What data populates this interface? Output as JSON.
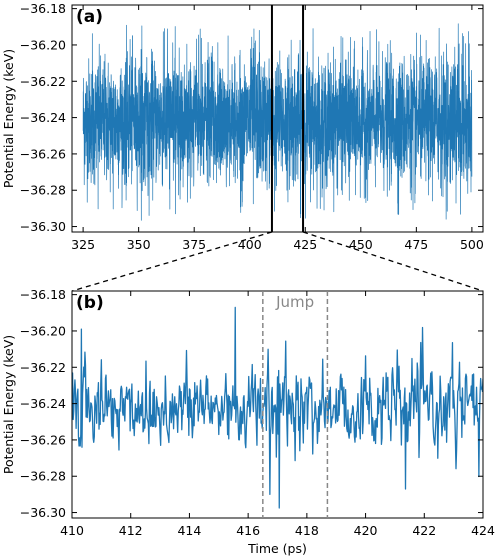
{
  "colors": {
    "series": "#1f77b4",
    "axes": "#000000",
    "annotation": "#888888"
  },
  "chart_data": [
    {
      "type": "line",
      "panel_label": "(a)",
      "ylabel": "Potential Energy (keV)",
      "xlabel": "",
      "xlim": [
        320,
        505
      ],
      "ylim": [
        -36.303,
        -36.178
      ],
      "xticks": [
        325,
        350,
        375,
        400,
        425,
        450,
        475,
        500
      ],
      "xtick_labels": [
        "325",
        "350",
        "375",
        "400",
        "425",
        "450",
        "475",
        "500"
      ],
      "yticks": [
        -36.18,
        -36.2,
        -36.22,
        -36.24,
        -36.26,
        -36.28,
        -36.3
      ],
      "ytick_labels": [
        "−36.18",
        "−36.20",
        "−36.22",
        "−36.24",
        "−36.26",
        "−36.28",
        "−36.30"
      ],
      "series": [
        {
          "x_range": [
            325,
            500
          ],
          "mean": -36.242,
          "typical_low": -36.275,
          "typical_high": -36.207,
          "min": -36.298,
          "max": -36.188
        }
      ],
      "highlight_window": [
        410,
        424
      ]
    },
    {
      "type": "line",
      "panel_label": "(b)",
      "ylabel": "Potential Energy (keV)",
      "xlabel": "Time (ps)",
      "xlim": [
        410,
        424
      ],
      "ylim": [
        -36.303,
        -36.178
      ],
      "xticks": [
        410,
        412,
        414,
        416,
        418,
        420,
        422,
        424
      ],
      "xtick_labels": [
        "410",
        "412",
        "414",
        "416",
        "418",
        "420",
        "422",
        "424"
      ],
      "yticks": [
        -36.18,
        -36.2,
        -36.22,
        -36.24,
        -36.26,
        -36.28,
        -36.3
      ],
      "ytick_labels": [
        "−36.18",
        "−36.20",
        "−36.22",
        "−36.24",
        "−36.26",
        "−36.28",
        "−36.30"
      ],
      "series": [
        {
          "x_range": [
            410,
            424
          ],
          "mean": -36.242,
          "typical_low": -36.268,
          "typical_high": -36.213,
          "min": -36.298,
          "max": -36.185
        }
      ],
      "annotations": [
        {
          "text": "Jump",
          "x_start": 416.5,
          "x_end": 418.7
        }
      ]
    }
  ]
}
